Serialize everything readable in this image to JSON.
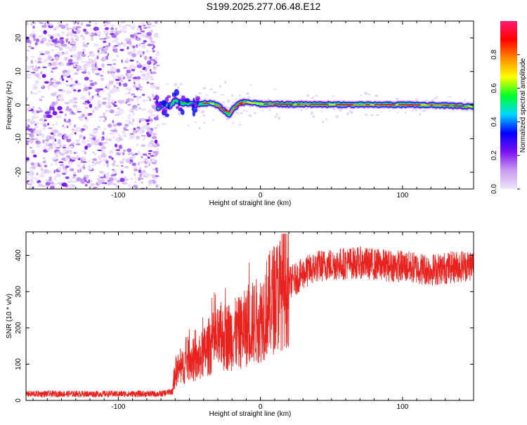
{
  "title": "S199.2025.277.06.48.E12",
  "chart_data": [
    {
      "type": "heatmap",
      "name": "spectrogram",
      "xlabel": "Height of straight line (km)",
      "ylabel": "Frequency (Hz)",
      "xlim": [
        -165,
        150
      ],
      "ylim": [
        -25,
        25
      ],
      "xticks": [
        -100,
        0,
        100
      ],
      "yticks": [
        -20,
        -10,
        0,
        10,
        20
      ],
      "noise_region_x": [
        -165,
        -72
      ],
      "signal_track": {
        "x": [
          -72,
          -68,
          -64,
          -60,
          -55,
          -50,
          -45,
          -40,
          -35,
          -30,
          -26,
          -22,
          -20,
          -15,
          -10,
          -5,
          0,
          20,
          40,
          60,
          80,
          100,
          120,
          140,
          150
        ],
        "freq_hz": [
          -1,
          0.5,
          -0.5,
          1.5,
          0.5,
          0.5,
          0,
          0.5,
          0.5,
          0,
          -1.5,
          -3,
          -1.5,
          0.5,
          1,
          0.5,
          0.3,
          0.2,
          0.2,
          0.1,
          0.1,
          0.1,
          0,
          -0.3,
          -0.5
        ]
      },
      "colorbar": {
        "label": "Normalized spectral amplitude",
        "range": [
          0,
          1
        ],
        "ticks": [
          "0.0",
          "0.2",
          "0.4",
          "0.6",
          "0.8"
        ],
        "colormap": [
          "#f0e6fa",
          "#c89bf0",
          "#7a10f0",
          "#0000ff",
          "#00d8ff",
          "#00ff28",
          "#ffff00",
          "#ff8c00",
          "#ff0000",
          "#ff1a6e"
        ]
      }
    },
    {
      "type": "line",
      "name": "snr",
      "xlabel": "Height of straight line (km)",
      "ylabel": "SNR (10 * v/v)",
      "xlim": [
        -165,
        150
      ],
      "ylim": [
        0,
        465
      ],
      "xticks": [
        -100,
        0,
        100
      ],
      "yticks": [
        0,
        100,
        200,
        300,
        400
      ],
      "color": "#e8231f",
      "series_profile": {
        "x": [
          -165,
          -70,
          -62,
          -60,
          -55,
          -50,
          -45,
          -40,
          -35,
          -30,
          -25,
          -20,
          -15,
          -10,
          -5,
          0,
          5,
          10,
          15,
          20,
          25,
          30,
          35,
          40,
          50,
          60,
          70,
          80,
          90,
          100,
          110,
          120,
          130,
          140,
          150
        ],
        "y": [
          18,
          18,
          25,
          80,
          90,
          120,
          105,
          130,
          155,
          165,
          175,
          180,
          185,
          200,
          215,
          225,
          260,
          285,
          305,
          325,
          335,
          350,
          360,
          370,
          375,
          378,
          380,
          375,
          372,
          370,
          365,
          360,
          365,
          370,
          375
        ]
      }
    }
  ]
}
